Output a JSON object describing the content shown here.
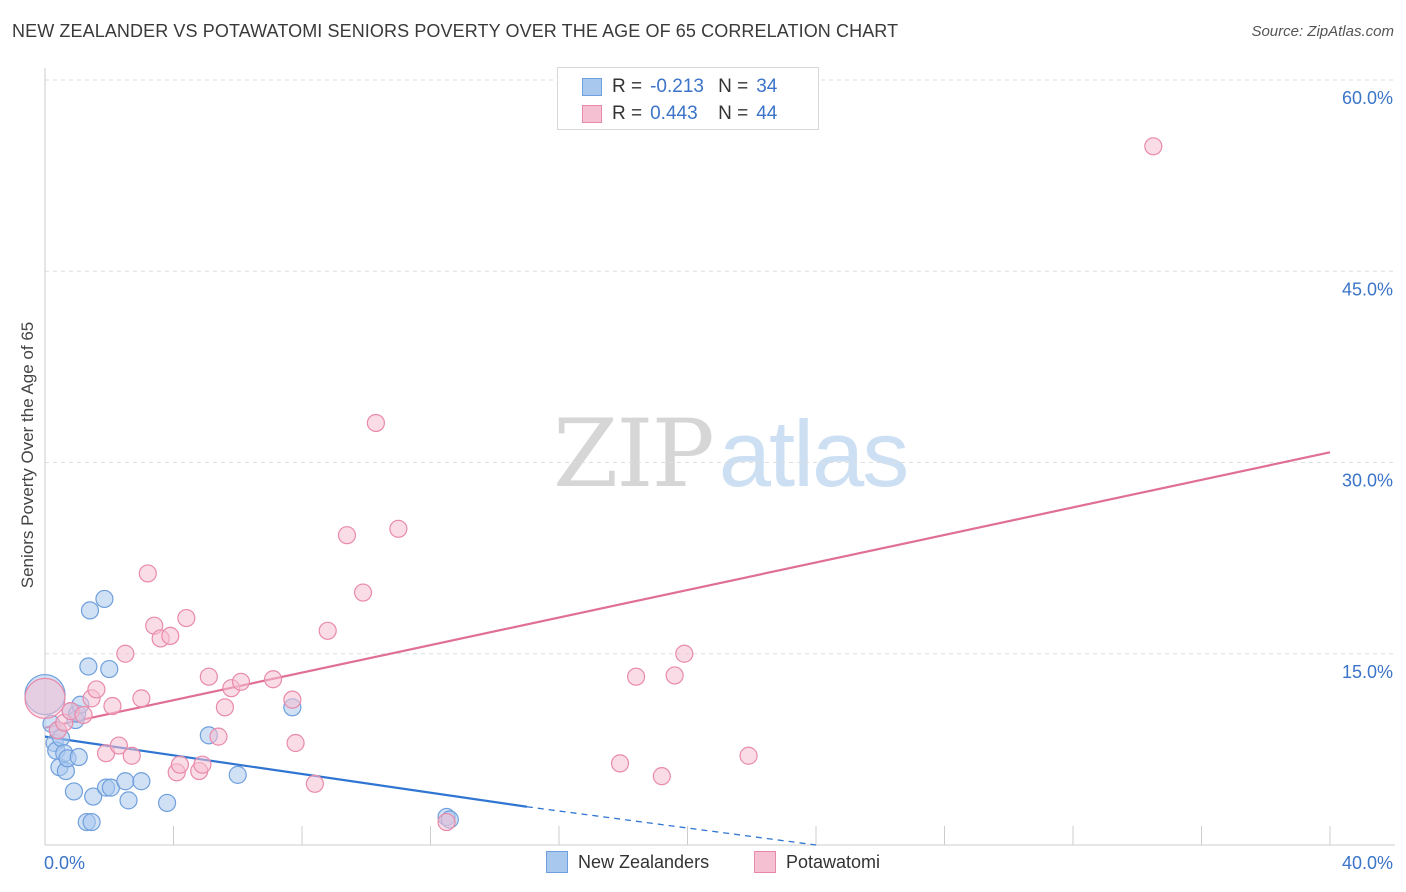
{
  "header": {
    "title": "NEW ZEALANDER VS POTAWATOMI SENIORS POVERTY OVER THE AGE OF 65 CORRELATION CHART",
    "source": "Source: ZipAtlas.com"
  },
  "watermark": {
    "zip": "ZIP",
    "atlas": "atlas"
  },
  "legend_top": {
    "rows": [
      {
        "r_label": "R =",
        "r_value": "-0.213",
        "n_label": "N =",
        "n_value": "34",
        "color": "#a9c8ee",
        "border": "#6f9fdc"
      },
      {
        "r_label": "R =",
        "r_value": "0.443",
        "n_label": "N =",
        "n_value": "44",
        "color": "#f5c0d1",
        "border": "#e98aaa"
      }
    ]
  },
  "legend_bottom": {
    "items": [
      {
        "label": "New Zealanders",
        "color": "#a9c8ee",
        "border": "#6f9fdc"
      },
      {
        "label": "Potawatomi",
        "color": "#f5c0d1",
        "border": "#e98aaa"
      }
    ]
  },
  "chart_data": {
    "type": "scatter",
    "title": "NEW ZEALANDER VS POTAWATOMI SENIORS POVERTY OVER THE AGE OF 65 CORRELATION CHART",
    "xlabel": "",
    "ylabel": "Seniors Poverty Over the Age of 65",
    "xlim": [
      0,
      40
    ],
    "ylim": [
      0,
      60
    ],
    "x_tick_labels": [
      "0.0%",
      "40.0%"
    ],
    "y_ticks": [
      15,
      30,
      45,
      60
    ],
    "y_tick_labels": [
      "15.0%",
      "30.0%",
      "45.0%",
      "60.0%"
    ],
    "grid": true,
    "legend_position": "top-center",
    "series": [
      {
        "name": "New Zealanders",
        "color": "#a9c8ee",
        "stroke": "#6f9fdc",
        "line_color": "#2f75d1",
        "trend": {
          "x0": 0,
          "y0": 8.5,
          "x1": 15,
          "y1": 3.0,
          "dash_x1": 24,
          "dash_y1": 0
        },
        "points": [
          [
            0.0,
            11.8,
            "large"
          ],
          [
            0.2,
            9.5
          ],
          [
            0.3,
            8.0
          ],
          [
            0.35,
            7.4
          ],
          [
            0.4,
            9.0
          ],
          [
            0.45,
            6.1
          ],
          [
            0.5,
            8.4
          ],
          [
            0.6,
            7.2
          ],
          [
            0.65,
            5.8
          ],
          [
            0.7,
            6.8
          ],
          [
            0.8,
            10.5
          ],
          [
            0.9,
            4.2
          ],
          [
            0.95,
            9.8
          ],
          [
            1.0,
            10.3
          ],
          [
            1.05,
            6.9
          ],
          [
            1.1,
            11.0
          ],
          [
            1.3,
            1.8
          ],
          [
            1.35,
            14.0
          ],
          [
            1.4,
            18.4
          ],
          [
            1.45,
            1.8
          ],
          [
            1.5,
            3.8
          ],
          [
            1.85,
            19.3
          ],
          [
            1.9,
            4.5
          ],
          [
            2.0,
            13.8
          ],
          [
            2.05,
            4.5
          ],
          [
            2.5,
            5.0
          ],
          [
            2.6,
            3.5
          ],
          [
            3.0,
            5.0
          ],
          [
            3.8,
            3.3
          ],
          [
            5.1,
            8.6
          ],
          [
            6.0,
            5.5
          ],
          [
            7.7,
            10.8
          ],
          [
            12.5,
            2.2
          ],
          [
            12.6,
            2.0
          ]
        ]
      },
      {
        "name": "Potawatomi",
        "color": "#f5c0d1",
        "stroke": "#e98aaa",
        "line_color": "#e06f98",
        "trend": {
          "x0": 0,
          "y0": 9.2,
          "x1": 40,
          "y1": 30.8
        },
        "points": [
          [
            0.0,
            11.5,
            "large"
          ],
          [
            0.4,
            9.0
          ],
          [
            0.6,
            9.6
          ],
          [
            0.8,
            10.5
          ],
          [
            1.2,
            10.2
          ],
          [
            1.45,
            11.5
          ],
          [
            1.6,
            12.2
          ],
          [
            1.9,
            7.2
          ],
          [
            2.1,
            10.9
          ],
          [
            2.3,
            7.8
          ],
          [
            2.5,
            15.0
          ],
          [
            2.7,
            7.0
          ],
          [
            3.0,
            11.5
          ],
          [
            3.2,
            21.3
          ],
          [
            3.4,
            17.2
          ],
          [
            3.6,
            16.2
          ],
          [
            3.9,
            16.4
          ],
          [
            4.1,
            5.7
          ],
          [
            4.2,
            6.3
          ],
          [
            4.4,
            17.8
          ],
          [
            4.8,
            5.8
          ],
          [
            4.9,
            6.3
          ],
          [
            5.1,
            13.2
          ],
          [
            5.4,
            8.5
          ],
          [
            5.6,
            10.8
          ],
          [
            5.8,
            12.3
          ],
          [
            6.1,
            12.8
          ],
          [
            7.1,
            13.0
          ],
          [
            7.7,
            11.4
          ],
          [
            7.8,
            8.0
          ],
          [
            8.4,
            4.8
          ],
          [
            8.8,
            16.8
          ],
          [
            9.4,
            24.3
          ],
          [
            9.9,
            19.8
          ],
          [
            10.3,
            33.1
          ],
          [
            11.0,
            24.8
          ],
          [
            12.5,
            1.8
          ],
          [
            17.9,
            6.4
          ],
          [
            18.4,
            13.2
          ],
          [
            19.2,
            5.4
          ],
          [
            19.6,
            13.3
          ],
          [
            19.9,
            15.0
          ],
          [
            21.9,
            7.0
          ],
          [
            34.5,
            54.8
          ]
        ]
      }
    ]
  }
}
